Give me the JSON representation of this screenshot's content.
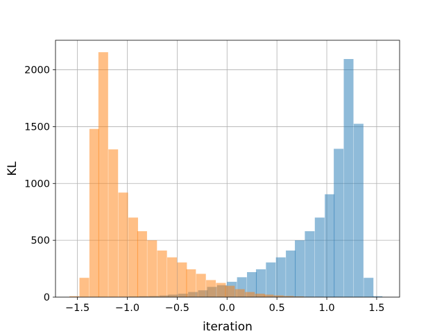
{
  "chart_data": {
    "type": "bar",
    "title": "",
    "xlabel": "iteration",
    "ylabel": "KL",
    "xlim": [
      -1.72,
      1.73
    ],
    "ylim": [
      0,
      2260
    ],
    "xticks": [
      -1.5,
      -1.0,
      -0.5,
      0.0,
      0.5,
      1.0,
      1.5
    ],
    "xtick_labels": [
      "−1.5",
      "−1.0",
      "−0.5",
      "0.0",
      "0.5",
      "1.0",
      "1.5"
    ],
    "yticks": [
      0,
      500,
      1000,
      1500,
      2000
    ],
    "ytick_labels": [
      "0",
      "500",
      "1000",
      "1500",
      "2000"
    ],
    "grid": true,
    "legend": "none",
    "bin_width": 0.0975,
    "series": [
      {
        "color": "#1f77b4",
        "opacity": 0.5,
        "bin_starts": [
          -1.17,
          -1.07,
          -0.98,
          -0.88,
          -0.78,
          -0.68,
          -0.59,
          -0.49,
          -0.39,
          -0.29,
          -0.2,
          -0.1,
          0.0,
          0.1,
          0.2,
          0.29,
          0.39,
          0.49,
          0.59,
          0.68,
          0.78,
          0.88,
          0.98,
          1.07,
          1.17,
          1.27,
          1.37,
          1.46
        ],
        "values": [
          2,
          3,
          5,
          8,
          10,
          15,
          22,
          30,
          45,
          60,
          90,
          105,
          135,
          175,
          220,
          245,
          305,
          350,
          410,
          500,
          580,
          700,
          905,
          1305,
          2095,
          1525,
          170,
          8
        ]
      },
      {
        "color": "#ff7f0e",
        "opacity": 0.5,
        "bin_starts": [
          -1.58,
          -1.48,
          -1.38,
          -1.29,
          -1.19,
          -1.09,
          -0.99,
          -0.9,
          -0.8,
          -0.7,
          -0.6,
          -0.5,
          -0.41,
          -0.31,
          -0.21,
          -0.11,
          -0.02,
          0.08,
          0.18,
          0.28,
          0.37,
          0.47,
          0.57,
          0.67,
          0.76,
          0.86
        ],
        "values": [
          8,
          170,
          1480,
          2155,
          1300,
          920,
          700,
          580,
          500,
          410,
          350,
          305,
          245,
          205,
          150,
          125,
          100,
          70,
          45,
          30,
          22,
          15,
          10,
          6,
          3,
          2
        ]
      }
    ]
  }
}
